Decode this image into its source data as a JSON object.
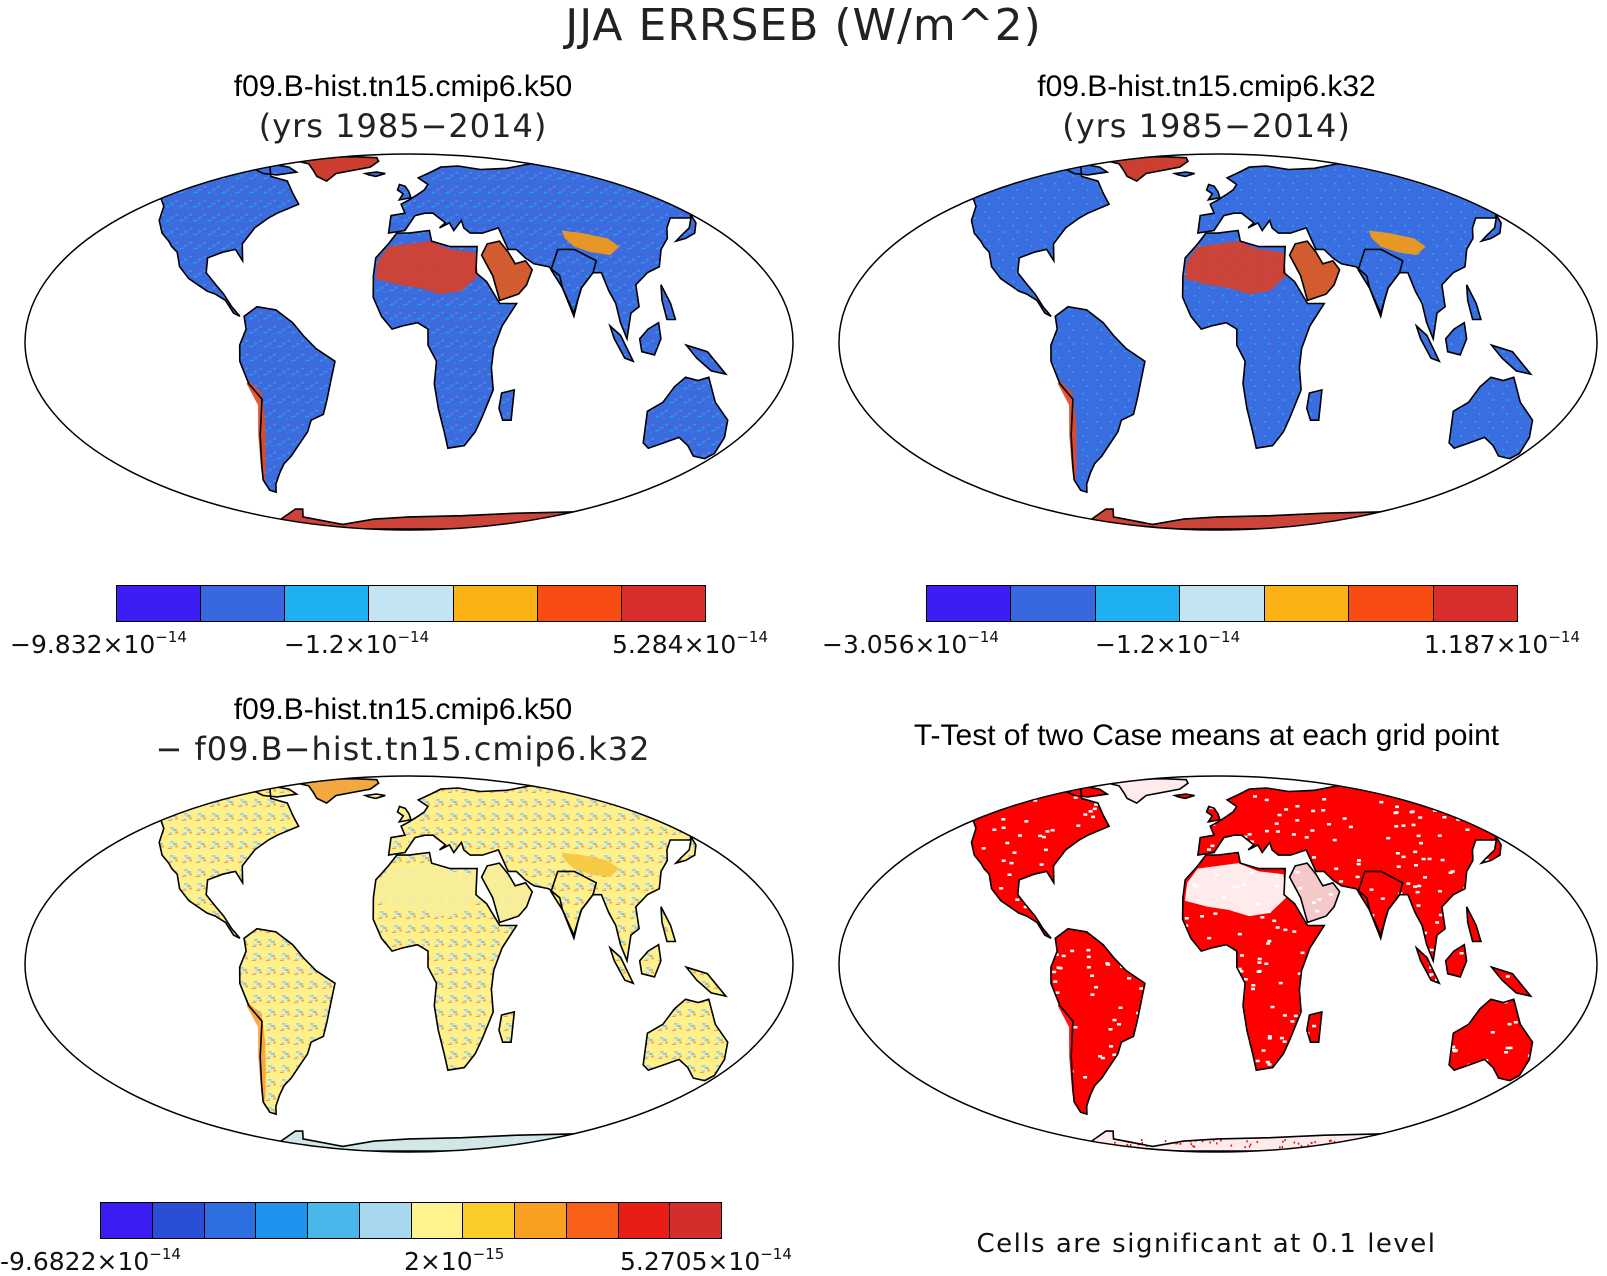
{
  "title": "JJA ERRSEB (W/m^2)",
  "panels": [
    {
      "id": "k50",
      "title": "f09.B-hist.tn15.cmip6.k50",
      "subtitle": "(yrs 1985−2014)",
      "land_palette": [
        "#3b6bdc",
        "#3f7ae8",
        "#1aa8f2",
        "#4a82e6",
        "#2f5fd0"
      ],
      "region_fills": {
        "greenland": "#d93a20",
        "antarctica": "#d8402a",
        "sahara": "#d8402a",
        "arabia": "#e05a20",
        "tibet": "#f59a16",
        "andes": "#e04a26"
      },
      "colorbar": {
        "colors": [
          "#3d1ef2",
          "#3867df",
          "#1eb0f0",
          "#c4e4f4",
          "#fab215",
          "#f94c13",
          "#d72e2b"
        ],
        "labels": [
          {
            "mant": "−9.832×10",
            "exp": "−14"
          },
          {
            "mant": "−1.2×10",
            "exp": "−14"
          },
          {
            "mant": "5.284×10",
            "exp": "−14"
          }
        ]
      }
    },
    {
      "id": "k32",
      "title": "f09.B-hist.tn15.cmip6.k32",
      "subtitle": "(yrs 1985−2014)",
      "land_palette": [
        "#3a6ee0",
        "#3a6ee0",
        "#3572e4",
        "#22a8ef",
        "#3a6ee0"
      ],
      "region_fills": {
        "greenland": "#d93a20",
        "antarctica": "#d8402a",
        "sahara": "#d8402a",
        "arabia": "#e05a20",
        "tibet": "#f59a16",
        "andes": "#e04a26"
      },
      "colorbar": {
        "colors": [
          "#3d1ef2",
          "#3867df",
          "#1eb0f0",
          "#c4e4f4",
          "#fab215",
          "#f94c13",
          "#d72e2b"
        ],
        "labels": [
          {
            "mant": "−3.056×10",
            "exp": "−14"
          },
          {
            "mant": "−1.2×10",
            "exp": "−14"
          },
          {
            "mant": "1.187×10",
            "exp": "−14"
          }
        ]
      }
    },
    {
      "id": "diff",
      "title": "f09.B-hist.tn15.cmip6.k50",
      "subtitle": "− f09.B−hist.tn15.cmip6.k32",
      "land_palette": [
        "#fef08a",
        "#b4dcef",
        "#f9a23a",
        "#8ec3ea",
        "#f7c840"
      ],
      "region_fills": {
        "greenland": "#f3a23c",
        "antarctica": "#cde6f0",
        "sahara": "#f7ef9a",
        "arabia": "#f7ef9a",
        "tibet": "#f7c840",
        "andes": "#f9a23a"
      },
      "colorbar": {
        "colors": [
          "#3b1df1",
          "#2a4fd6",
          "#2d6fe0",
          "#1f94ee",
          "#4ab7ea",
          "#a8d7f0",
          "#fef38c",
          "#fbcd2a",
          "#f9a021",
          "#f85f17",
          "#ea1c16",
          "#d42e2c"
        ],
        "labels": [
          {
            "mant": "-9.6822×10",
            "exp": "−14"
          },
          {
            "mant": "2×10",
            "exp": "−15"
          },
          {
            "mant": "5.2705×10",
            "exp": "−14"
          }
        ]
      }
    },
    {
      "id": "ttest",
      "title": "T-Test of two Case means at each grid point",
      "subtitle": "",
      "land_palette": [
        "#ff0000",
        "#ff0000",
        "#ff0000",
        "#ff0000",
        "#ff0000"
      ],
      "region_fills": {
        "greenland": "#ffffff",
        "antarctica": "#ffffff",
        "sahara": "#ffffff",
        "arabia": "#f4dada",
        "tibet": "#ff0000",
        "andes": "#ff0000"
      },
      "footnote": "Cells are significant at 0.1 level"
    }
  ]
}
